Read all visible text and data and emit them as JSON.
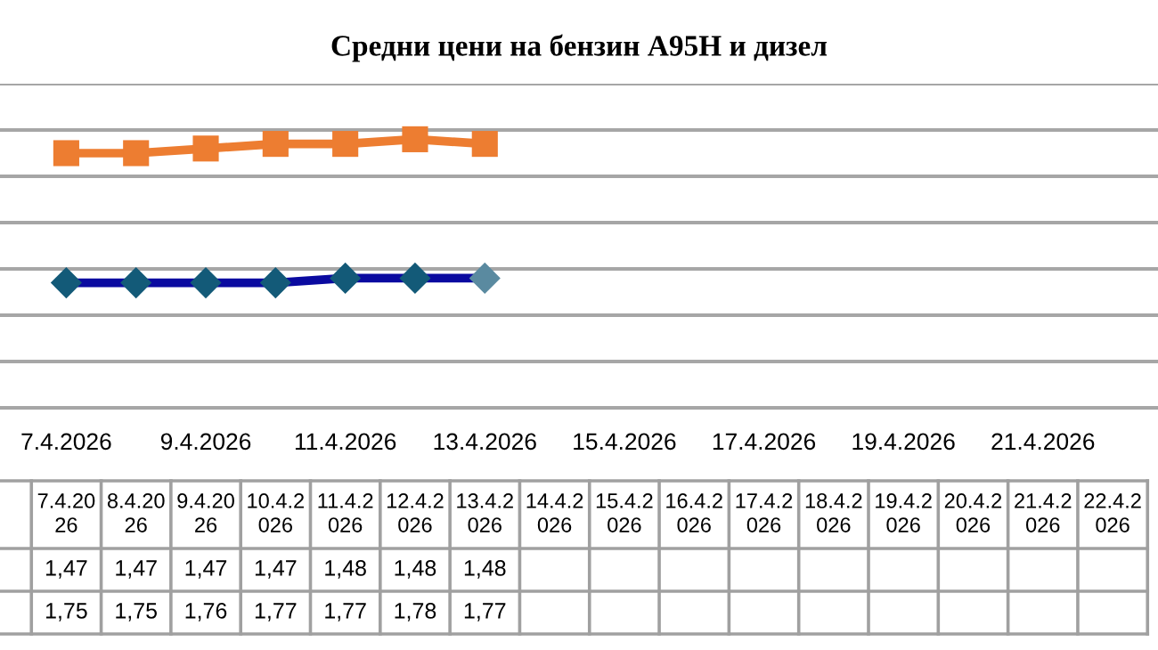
{
  "chart_data": {
    "type": "line",
    "title": "Средни цени на бензин А95Н и дизел",
    "categories": [
      "7.4.2026",
      "8.4.2026",
      "9.4.2026",
      "10.4.2026",
      "11.4.2026",
      "12.4.2026",
      "13.4.2026",
      "14.4.2026",
      "15.4.2026",
      "16.4.2026",
      "17.4.2026",
      "18.4.2026",
      "19.4.2026",
      "20.4.2026",
      "21.4.2026",
      "22.4.2026"
    ],
    "series": [
      {
        "color": "#0a0aa0",
        "colors": [
          "#135a78",
          "#135a78",
          "#135a78",
          "#135a78",
          "#135a78",
          "#135a78",
          "#5a8aa0",
          null,
          null,
          null,
          null,
          null,
          null,
          null,
          null,
          null
        ],
        "marker": "diamond",
        "values": [
          1.47,
          1.47,
          1.47,
          1.47,
          1.48,
          1.48,
          1.48,
          null,
          null,
          null,
          null,
          null,
          null,
          null,
          null,
          null
        ],
        "value_labels": [
          "1,47",
          "1,47",
          "1,47",
          "1,47",
          "1,48",
          "1,48",
          "1,48",
          null,
          null,
          null,
          null,
          null,
          null,
          null,
          null,
          null
        ]
      },
      {
        "color": "#ed7d31",
        "marker": "square",
        "values": [
          1.75,
          1.75,
          1.76,
          1.77,
          1.77,
          1.78,
          1.77,
          null,
          null,
          null,
          null,
          null,
          null,
          null,
          null,
          null
        ],
        "value_labels": [
          "1,75",
          "1,75",
          "1,76",
          "1,77",
          "1,77",
          "1,78",
          "1,77",
          null,
          null,
          null,
          null,
          null,
          null,
          null,
          null,
          null
        ]
      }
    ],
    "ylim": [
      1.2,
      1.9
    ],
    "yticks": [
      {
        "value": 1.2,
        "label": null
      },
      {
        "value": 1.3,
        "label": null
      },
      {
        "value": 1.4,
        "label": null
      },
      {
        "value": 1.5,
        "label": null
      },
      {
        "value": 1.6,
        "label": null
      },
      {
        "value": 1.7,
        "label": null
      },
      {
        "value": 1.8,
        "label": null
      },
      {
        "value": 1.9,
        "label": null
      }
    ],
    "tick_labels": "x",
    "grid": "y",
    "legend": false,
    "line_style": "solid"
  }
}
